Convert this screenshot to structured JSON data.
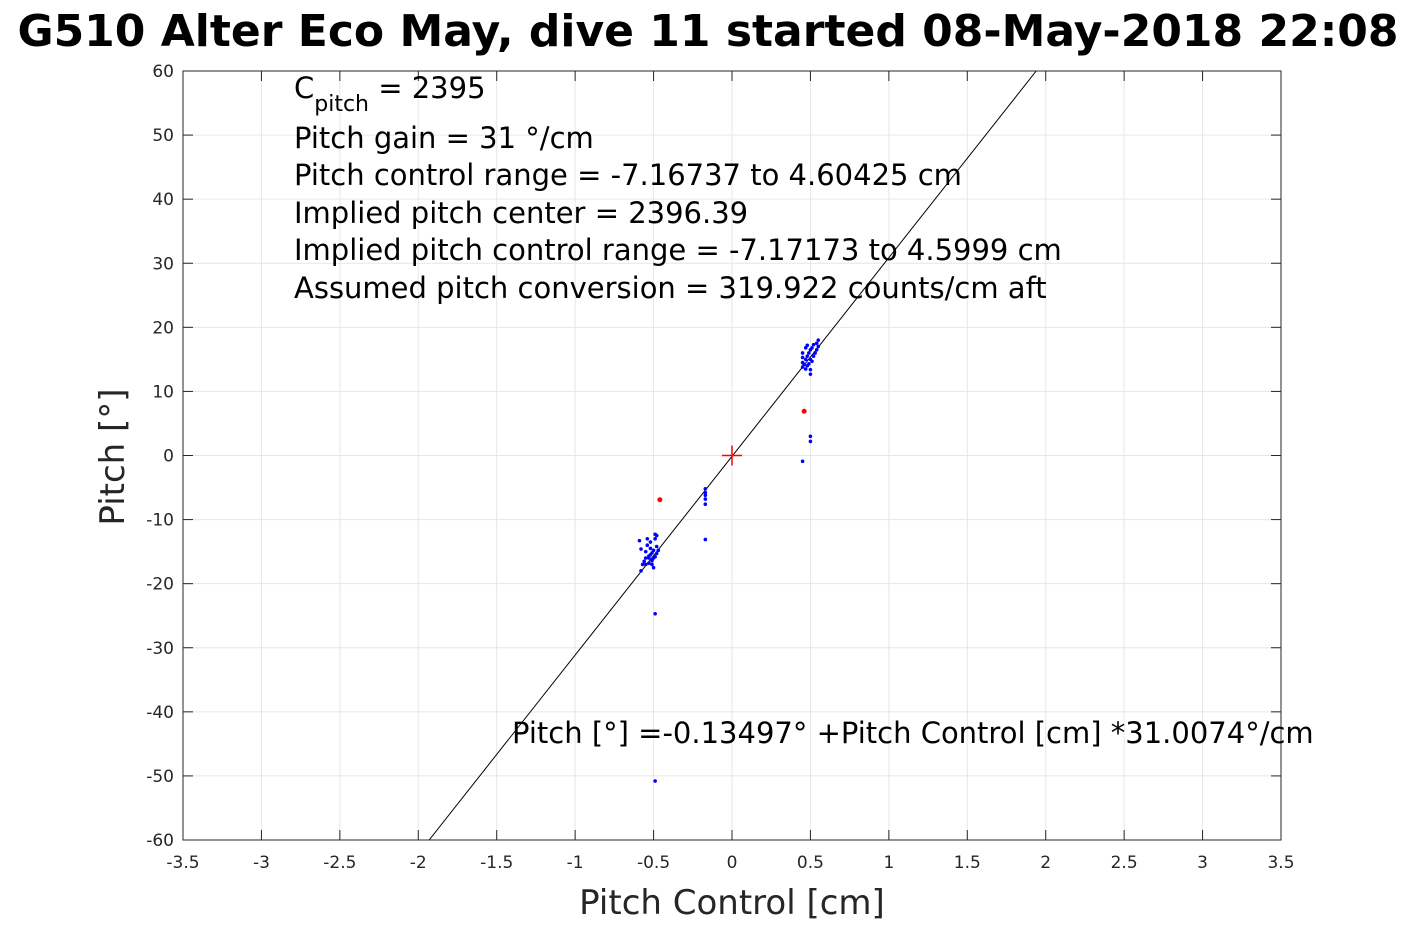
{
  "chart_data": {
    "type": "scatter",
    "title": "G510 Alter Eco May, dive 11 started 08-May-2018 22:08",
    "xlabel": "Pitch Control [cm]",
    "ylabel": "Pitch [°]",
    "xlim": [
      -3.5,
      3.5
    ],
    "ylim": [
      -60,
      60
    ],
    "xticks": [
      -3.5,
      -3,
      -2.5,
      -2,
      -1.5,
      -1,
      -0.5,
      0,
      0.5,
      1,
      1.5,
      2,
      2.5,
      3,
      3.5
    ],
    "xtick_labels": [
      "-3.5",
      "-3",
      "-2.5",
      "-2",
      "-1.5",
      "-1",
      "-0.5",
      "0",
      "0.5",
      "1",
      "1.5",
      "2",
      "2.5",
      "3",
      "3.5"
    ],
    "yticks": [
      -60,
      -50,
      -40,
      -30,
      -20,
      -10,
      0,
      10,
      20,
      30,
      40,
      50,
      60
    ],
    "ytick_labels": [
      "-60",
      "-50",
      "-40",
      "-30",
      "-20",
      "-10",
      "0",
      "10",
      "20",
      "30",
      "40",
      "50",
      "60"
    ],
    "grid": true,
    "colors": {
      "points": "#0000ff",
      "outliers": "#ff0000",
      "center": "#ff0000",
      "fit": "#000000",
      "grid": "#e6e6e6",
      "axes": "#262626"
    },
    "fit_line": {
      "intercept": -0.13497,
      "slope": 31.0074
    },
    "center_marker": {
      "x": 0,
      "y": 0
    },
    "series": [
      {
        "points": [
          [
            -0.58,
            -18.0
          ],
          [
            -0.57,
            -17.0
          ],
          [
            -0.56,
            -16.5
          ],
          [
            -0.55,
            -16.0
          ],
          [
            -0.55,
            -15.0
          ],
          [
            -0.54,
            -14.0
          ],
          [
            -0.54,
            -13.0
          ],
          [
            -0.53,
            -16.8
          ],
          [
            -0.53,
            -16.0
          ],
          [
            -0.52,
            -15.5
          ],
          [
            -0.52,
            -14.5
          ],
          [
            -0.52,
            -13.5
          ],
          [
            -0.51,
            -16.4
          ],
          [
            -0.51,
            -15.2
          ],
          [
            -0.5,
            -17.5
          ],
          [
            -0.5,
            -16.0
          ],
          [
            -0.5,
            -14.8
          ],
          [
            -0.49,
            -15.8
          ],
          [
            -0.49,
            -13.0
          ],
          [
            -0.49,
            -12.3
          ],
          [
            -0.48,
            -15.3
          ],
          [
            -0.48,
            -14.2
          ],
          [
            -0.48,
            -12.5
          ],
          [
            -0.47,
            -14.8
          ],
          [
            -0.55,
            -17.0
          ],
          [
            -0.51,
            -17.0
          ],
          [
            -0.59,
            -13.3
          ],
          [
            -0.58,
            -14.6
          ],
          [
            -0.53,
            -15.7
          ],
          [
            -0.49,
            -24.7
          ],
          [
            -0.49,
            -50.8
          ],
          [
            -0.17,
            -5.2
          ],
          [
            -0.17,
            -5.8
          ],
          [
            -0.17,
            -6.2
          ],
          [
            -0.17,
            -6.8
          ],
          [
            -0.17,
            -7.6
          ],
          [
            -0.17,
            -13.1
          ],
          [
            0.45,
            13.8
          ],
          [
            0.45,
            14.5
          ],
          [
            0.45,
            15.3
          ],
          [
            0.45,
            16.0
          ],
          [
            0.46,
            14.2
          ],
          [
            0.47,
            13.5
          ],
          [
            0.47,
            15.0
          ],
          [
            0.47,
            16.8
          ],
          [
            0.48,
            14.0
          ],
          [
            0.48,
            15.5
          ],
          [
            0.48,
            17.2
          ],
          [
            0.49,
            14.3
          ],
          [
            0.49,
            16.0
          ],
          [
            0.5,
            13.4
          ],
          [
            0.5,
            15.0
          ],
          [
            0.5,
            16.5
          ],
          [
            0.5,
            12.7
          ],
          [
            0.51,
            14.7
          ],
          [
            0.51,
            16.8
          ],
          [
            0.52,
            15.5
          ],
          [
            0.52,
            17.3
          ],
          [
            0.53,
            16.0
          ],
          [
            0.54,
            17.5
          ],
          [
            0.54,
            16.5
          ],
          [
            0.55,
            18.0
          ],
          [
            0.55,
            17.0
          ],
          [
            0.45,
            -0.9
          ],
          [
            0.5,
            2.2
          ],
          [
            0.5,
            3.0
          ]
        ]
      },
      {
        "points": [
          [
            -0.46,
            -6.9
          ],
          [
            0.46,
            6.9
          ]
        ]
      }
    ],
    "annotations": {
      "cpitch_symbol": "C",
      "cpitch_sub": "pitch",
      "cpitch_value": " = 2395",
      "lines": [
        "Pitch gain = 31 °/cm",
        "Pitch control range = -7.16737 to 4.60425 cm",
        "Implied pitch center = 2396.39",
        "Implied pitch control range = -7.17173 to 4.5999 cm",
        "Assumed pitch conversion = 319.922 counts/cm aft"
      ],
      "equation": "Pitch [°] =-0.13497° +Pitch Control [cm] *31.0074°/cm"
    }
  }
}
